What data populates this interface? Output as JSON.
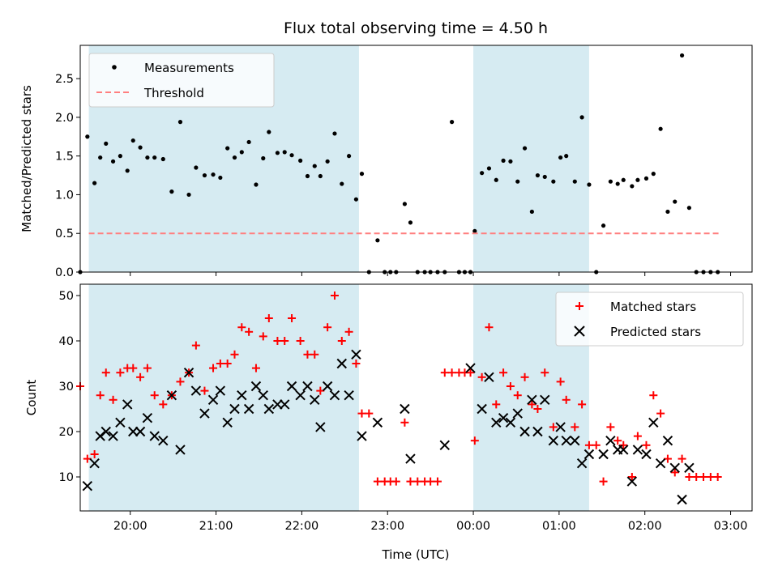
{
  "chart_data": [
    {
      "type": "scatter",
      "title": "Flux total observing time = 4.50 h",
      "ylabel": "Matched/Predicted stars",
      "xlabel": "",
      "xlim": [
        "19:25",
        "03:15"
      ],
      "ylim": [
        0,
        2.93
      ],
      "yticks": [
        "0.0",
        "0.5",
        "1.0",
        "1.5",
        "2.0",
        "2.5"
      ],
      "shaded_intervals": [
        [
          "19:31",
          "22:40"
        ],
        [
          "00:00",
          "01:21"
        ]
      ],
      "legend_position": "upper-left",
      "series": [
        {
          "name": "Measurements",
          "marker": "dot",
          "color": "#000000",
          "points": [
            [
              "19:25",
              0.0
            ],
            [
              "19:30",
              1.75
            ],
            [
              "19:35",
              1.15
            ],
            [
              "19:39",
              1.48
            ],
            [
              "19:43",
              1.66
            ],
            [
              "19:48",
              1.43
            ],
            [
              "19:53",
              1.5
            ],
            [
              "19:58",
              1.31
            ],
            [
              "20:02",
              1.7
            ],
            [
              "20:07",
              1.61
            ],
            [
              "20:12",
              1.48
            ],
            [
              "20:17",
              1.48
            ],
            [
              "20:23",
              1.46
            ],
            [
              "20:29",
              1.04
            ],
            [
              "20:35",
              1.94
            ],
            [
              "20:41",
              1.0
            ],
            [
              "20:46",
              1.35
            ],
            [
              "20:52",
              1.25
            ],
            [
              "20:58",
              1.26
            ],
            [
              "21:03",
              1.22
            ],
            [
              "21:08",
              1.6
            ],
            [
              "21:13",
              1.48
            ],
            [
              "21:18",
              1.55
            ],
            [
              "21:23",
              1.68
            ],
            [
              "21:28",
              1.13
            ],
            [
              "21:33",
              1.47
            ],
            [
              "21:37",
              1.81
            ],
            [
              "21:43",
              1.54
            ],
            [
              "21:48",
              1.55
            ],
            [
              "21:53",
              1.51
            ],
            [
              "21:59",
              1.44
            ],
            [
              "22:04",
              1.24
            ],
            [
              "22:09",
              1.37
            ],
            [
              "22:13",
              1.24
            ],
            [
              "22:18",
              1.43
            ],
            [
              "22:23",
              1.79
            ],
            [
              "22:28",
              1.14
            ],
            [
              "22:33",
              1.5
            ],
            [
              "22:38",
              0.94
            ],
            [
              "22:42",
              1.27
            ],
            [
              "22:47",
              0.0
            ],
            [
              "22:53",
              0.41
            ],
            [
              "22:58",
              0.0
            ],
            [
              "23:02",
              0.0
            ],
            [
              "23:06",
              0.0
            ],
            [
              "23:12",
              0.88
            ],
            [
              "23:16",
              0.64
            ],
            [
              "23:21",
              0.0
            ],
            [
              "23:26",
              0.0
            ],
            [
              "23:30",
              0.0
            ],
            [
              "23:35",
              0.0
            ],
            [
              "23:40",
              0.0
            ],
            [
              "23:45",
              1.94
            ],
            [
              "23:50",
              0.0
            ],
            [
              "23:54",
              0.0
            ],
            [
              "23:58",
              0.0
            ],
            [
              "00:01",
              0.53
            ],
            [
              "00:06",
              1.28
            ],
            [
              "00:11",
              1.34
            ],
            [
              "00:16",
              1.19
            ],
            [
              "00:21",
              1.44
            ],
            [
              "00:26",
              1.43
            ],
            [
              "00:31",
              1.17
            ],
            [
              "00:36",
              1.6
            ],
            [
              "00:41",
              0.78
            ],
            [
              "00:45",
              1.25
            ],
            [
              "00:50",
              1.23
            ],
            [
              "00:56",
              1.17
            ],
            [
              "01:01",
              1.48
            ],
            [
              "01:05",
              1.5
            ],
            [
              "01:11",
              1.17
            ],
            [
              "01:16",
              2.0
            ],
            [
              "01:21",
              1.13
            ],
            [
              "01:26",
              0.0
            ],
            [
              "01:31",
              0.6
            ],
            [
              "01:36",
              1.17
            ],
            [
              "01:41",
              1.14
            ],
            [
              "01:45",
              1.19
            ],
            [
              "01:51",
              1.11
            ],
            [
              "01:55",
              1.19
            ],
            [
              "02:01",
              1.21
            ],
            [
              "02:06",
              1.27
            ],
            [
              "02:11",
              1.85
            ],
            [
              "02:16",
              0.78
            ],
            [
              "02:21",
              0.91
            ],
            [
              "02:26",
              2.8
            ],
            [
              "02:31",
              0.83
            ],
            [
              "02:36",
              0.0
            ],
            [
              "02:41",
              0.0
            ],
            [
              "02:46",
              0.0
            ],
            [
              "02:51",
              0.0
            ]
          ]
        },
        {
          "name": "Threshold",
          "marker": "dashed-line",
          "color": "#ff7f7f",
          "points": [
            [
              "19:31",
              0.5
            ],
            [
              "02:53",
              0.5
            ]
          ]
        }
      ]
    },
    {
      "type": "scatter",
      "title": "",
      "xlabel": "Time (UTC)",
      "ylabel": "Count",
      "xlim": [
        "19:25",
        "03:15"
      ],
      "ylim": [
        2.5,
        52.5
      ],
      "yticks": [
        "10",
        "20",
        "30",
        "40",
        "50"
      ],
      "xticks": [
        "20:00",
        "21:00",
        "22:00",
        "23:00",
        "00:00",
        "01:00",
        "02:00",
        "03:00"
      ],
      "shaded_intervals": [
        [
          "19:31",
          "22:40"
        ],
        [
          "00:00",
          "01:21"
        ]
      ],
      "legend_position": "upper-right",
      "series": [
        {
          "name": "Matched stars",
          "marker": "plus",
          "color": "#ff0000",
          "points": [
            [
              "19:25",
              30
            ],
            [
              "19:30",
              14
            ],
            [
              "19:35",
              15
            ],
            [
              "19:39",
              28
            ],
            [
              "19:43",
              33
            ],
            [
              "19:48",
              27
            ],
            [
              "19:53",
              33
            ],
            [
              "19:58",
              34
            ],
            [
              "20:02",
              34
            ],
            [
              "20:07",
              32
            ],
            [
              "20:12",
              34
            ],
            [
              "20:17",
              28
            ],
            [
              "20:23",
              26
            ],
            [
              "20:29",
              28
            ],
            [
              "20:35",
              31
            ],
            [
              "20:41",
              33
            ],
            [
              "20:46",
              39
            ],
            [
              "20:52",
              29
            ],
            [
              "20:58",
              34
            ],
            [
              "21:03",
              35
            ],
            [
              "21:08",
              35
            ],
            [
              "21:13",
              37
            ],
            [
              "21:18",
              43
            ],
            [
              "21:23",
              42
            ],
            [
              "21:28",
              34
            ],
            [
              "21:33",
              41
            ],
            [
              "21:37",
              45
            ],
            [
              "21:43",
              40
            ],
            [
              "21:48",
              40
            ],
            [
              "21:53",
              45
            ],
            [
              "21:59",
              40
            ],
            [
              "22:04",
              37
            ],
            [
              "22:09",
              37
            ],
            [
              "22:13",
              29
            ],
            [
              "22:18",
              43
            ],
            [
              "22:23",
              50
            ],
            [
              "22:28",
              40
            ],
            [
              "22:33",
              42
            ],
            [
              "22:38",
              35
            ],
            [
              "22:42",
              24
            ],
            [
              "22:47",
              24
            ],
            [
              "22:53",
              9
            ],
            [
              "22:58",
              9
            ],
            [
              "23:02",
              9
            ],
            [
              "23:06",
              9
            ],
            [
              "23:12",
              22
            ],
            [
              "23:16",
              9
            ],
            [
              "23:21",
              9
            ],
            [
              "23:26",
              9
            ],
            [
              "23:30",
              9
            ],
            [
              "23:35",
              9
            ],
            [
              "23:40",
              33
            ],
            [
              "23:45",
              33
            ],
            [
              "23:50",
              33
            ],
            [
              "23:54",
              33
            ],
            [
              "23:58",
              33
            ],
            [
              "00:01",
              18
            ],
            [
              "00:06",
              32
            ],
            [
              "00:11",
              43
            ],
            [
              "00:16",
              26
            ],
            [
              "00:21",
              33
            ],
            [
              "00:26",
              30
            ],
            [
              "00:31",
              28
            ],
            [
              "00:36",
              32
            ],
            [
              "00:41",
              26
            ],
            [
              "00:45",
              25
            ],
            [
              "00:50",
              33
            ],
            [
              "00:56",
              21
            ],
            [
              "01:01",
              31
            ],
            [
              "01:05",
              27
            ],
            [
              "01:11",
              21
            ],
            [
              "01:16",
              26
            ],
            [
              "01:21",
              17
            ],
            [
              "01:26",
              17
            ],
            [
              "01:31",
              9
            ],
            [
              "01:36",
              21
            ],
            [
              "01:41",
              18
            ],
            [
              "01:45",
              17
            ],
            [
              "01:51",
              10
            ],
            [
              "01:55",
              19
            ],
            [
              "02:01",
              17
            ],
            [
              "02:06",
              28
            ],
            [
              "02:11",
              24
            ],
            [
              "02:16",
              14
            ],
            [
              "02:21",
              11
            ],
            [
              "02:26",
              14
            ],
            [
              "02:31",
              10
            ],
            [
              "02:36",
              10
            ],
            [
              "02:41",
              10
            ],
            [
              "02:46",
              10
            ],
            [
              "02:51",
              10
            ]
          ]
        },
        {
          "name": "Predicted stars",
          "marker": "x",
          "color": "#000000",
          "points": [
            [
              "19:30",
              8
            ],
            [
              "19:35",
              13
            ],
            [
              "19:39",
              19
            ],
            [
              "19:43",
              20
            ],
            [
              "19:48",
              19
            ],
            [
              "19:53",
              22
            ],
            [
              "19:58",
              26
            ],
            [
              "20:02",
              20
            ],
            [
              "20:07",
              20
            ],
            [
              "20:12",
              23
            ],
            [
              "20:17",
              19
            ],
            [
              "20:23",
              18
            ],
            [
              "20:29",
              28
            ],
            [
              "20:35",
              16
            ],
            [
              "20:41",
              33
            ],
            [
              "20:46",
              29
            ],
            [
              "20:52",
              24
            ],
            [
              "20:58",
              27
            ],
            [
              "21:03",
              29
            ],
            [
              "21:08",
              22
            ],
            [
              "21:13",
              25
            ],
            [
              "21:18",
              28
            ],
            [
              "21:23",
              25
            ],
            [
              "21:28",
              30
            ],
            [
              "21:33",
              28
            ],
            [
              "21:37",
              25
            ],
            [
              "21:43",
              26
            ],
            [
              "21:48",
              26
            ],
            [
              "21:53",
              30
            ],
            [
              "21:59",
              28
            ],
            [
              "22:04",
              30
            ],
            [
              "22:09",
              27
            ],
            [
              "22:13",
              21
            ],
            [
              "22:18",
              30
            ],
            [
              "22:23",
              28
            ],
            [
              "22:28",
              35
            ],
            [
              "22:33",
              28
            ],
            [
              "22:38",
              37
            ],
            [
              "22:42",
              19
            ],
            [
              "22:53",
              22
            ],
            [
              "23:12",
              25
            ],
            [
              "23:16",
              14
            ],
            [
              "23:40",
              17
            ],
            [
              "23:58",
              34
            ],
            [
              "00:06",
              25
            ],
            [
              "00:11",
              32
            ],
            [
              "00:16",
              22
            ],
            [
              "00:21",
              23
            ],
            [
              "00:26",
              22
            ],
            [
              "00:31",
              24
            ],
            [
              "00:36",
              20
            ],
            [
              "00:41",
              27
            ],
            [
              "00:45",
              20
            ],
            [
              "00:50",
              27
            ],
            [
              "00:56",
              18
            ],
            [
              "01:01",
              21
            ],
            [
              "01:05",
              18
            ],
            [
              "01:11",
              18
            ],
            [
              "01:16",
              13
            ],
            [
              "01:21",
              15
            ],
            [
              "01:31",
              15
            ],
            [
              "01:36",
              18
            ],
            [
              "01:41",
              16
            ],
            [
              "01:45",
              16
            ],
            [
              "01:51",
              9
            ],
            [
              "01:55",
              16
            ],
            [
              "02:01",
              15
            ],
            [
              "02:06",
              22
            ],
            [
              "02:11",
              13
            ],
            [
              "02:16",
              18
            ],
            [
              "02:21",
              12
            ],
            [
              "02:26",
              5
            ],
            [
              "02:31",
              12
            ]
          ]
        }
      ]
    }
  ]
}
